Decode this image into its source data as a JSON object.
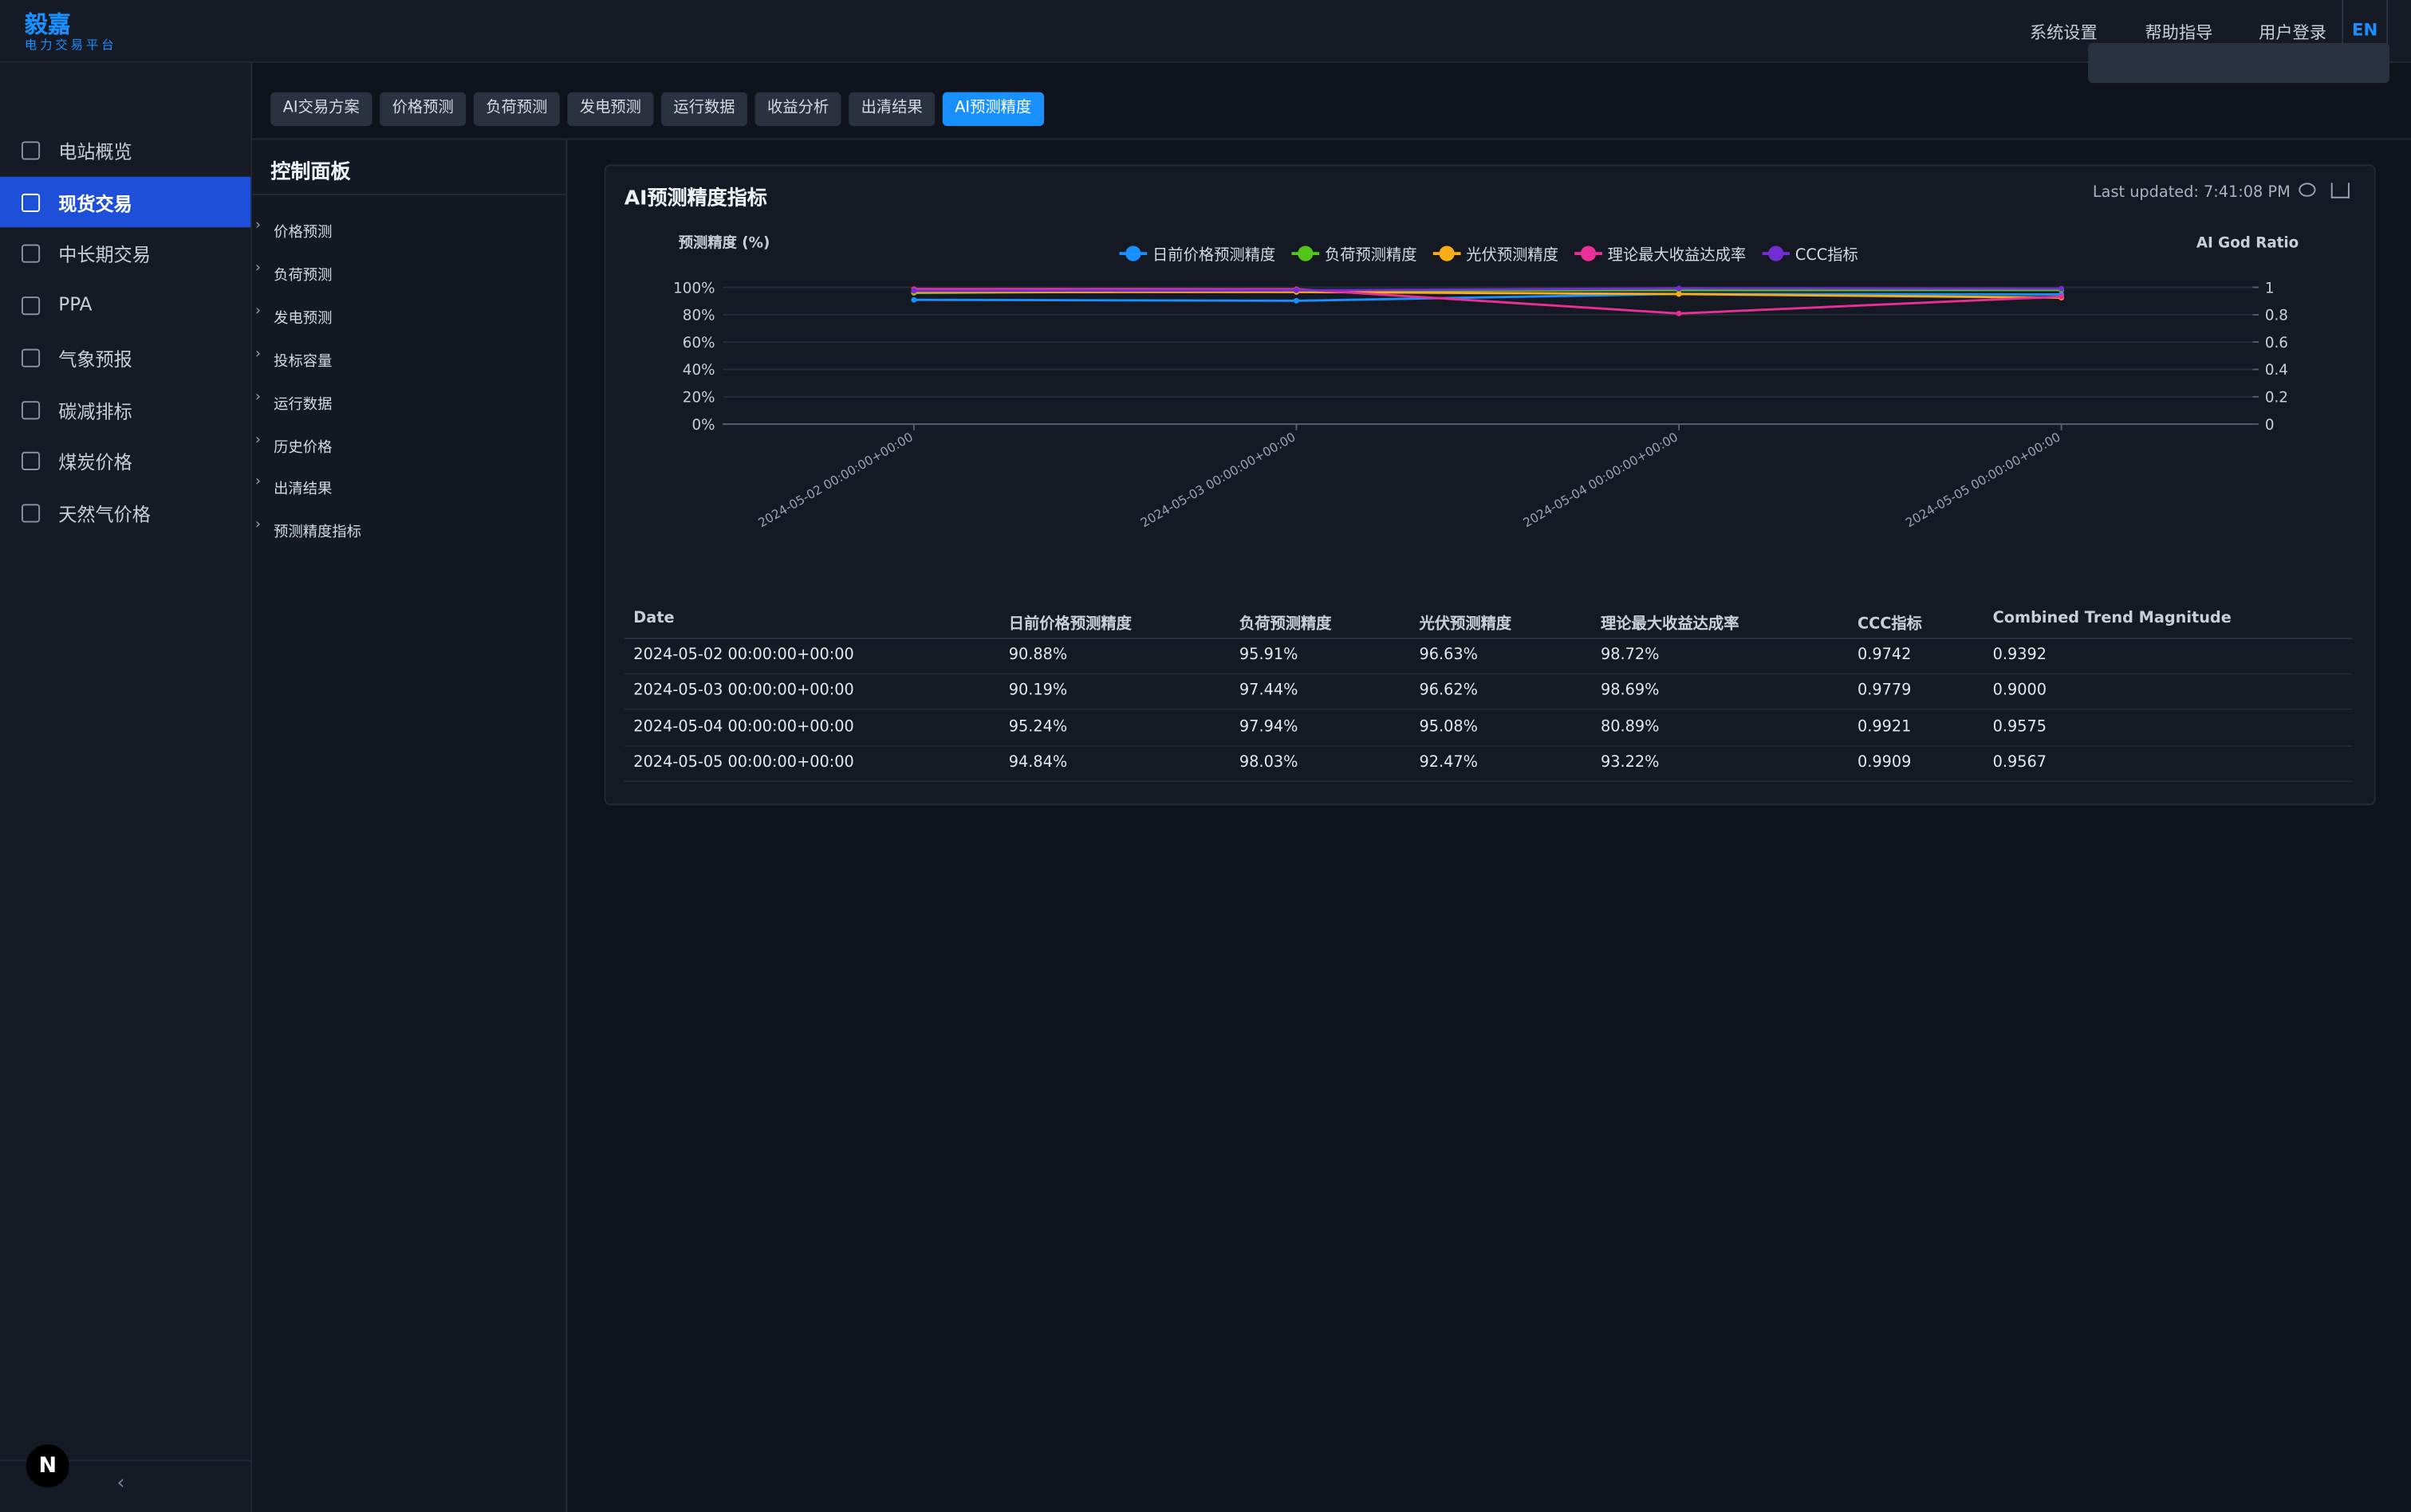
{
  "header": {
    "logo": "毅嘉",
    "logo_sub": "电力交易平台",
    "menu": [
      "系统设置",
      "帮助指导",
      "用户登录"
    ],
    "lang": "EN"
  },
  "sidebar": {
    "items": [
      "电站概览",
      "现货交易",
      "中长期交易",
      "PPA",
      "气象预报",
      "碳减排标",
      "煤炭价格",
      "天然气价格"
    ],
    "active": 1
  },
  "tabs": {
    "items": [
      "AI交易方案",
      "价格预测",
      "负荷预测",
      "发电预测",
      "运行数据",
      "收益分析",
      "出清结果",
      "AI预测精度"
    ],
    "active": 7
  },
  "control_panel": {
    "title": "控制面板",
    "items": [
      "价格预测",
      "负荷预测",
      "发电预测",
      "投标容量",
      "运行数据",
      "历史价格",
      "出清结果",
      "预测精度指标"
    ]
  },
  "card": {
    "title": "AI预测精度指标",
    "last_updated": "Last updated: 7:41:08 PM"
  },
  "chart_data": {
    "type": "line",
    "y_label": "预测精度 (%)",
    "y2_label": "AI God Ratio",
    "categories": [
      "2024-05-02 00:00:00+00:00",
      "2024-05-03 00:00:00+00:00",
      "2024-05-04 00:00:00+00:00",
      "2024-05-05 00:00:00+00:00"
    ],
    "series": [
      {
        "name": "日前价格预测精度",
        "color": "#1890ff",
        "values": [
          90.88,
          90.19,
          95.24,
          94.84
        ]
      },
      {
        "name": "负荷预测精度",
        "color": "#52c41a",
        "values": [
          95.91,
          97.44,
          97.94,
          98.03
        ]
      },
      {
        "name": "光伏预测精度",
        "color": "#faad14",
        "values": [
          96.63,
          96.62,
          95.08,
          92.47
        ]
      },
      {
        "name": "理论最大收益达成率",
        "color": "#eb2f96",
        "values": [
          98.72,
          98.69,
          80.89,
          93.22
        ]
      },
      {
        "name": "CCC指标",
        "color": "#722ed1",
        "values": [
          0.9742,
          0.9779,
          0.9921,
          0.9909
        ],
        "axis": "y2"
      }
    ],
    "ylim": [
      0,
      100
    ],
    "yticks": [
      {
        "value": 0,
        "label": "0%"
      },
      {
        "value": 20,
        "label": "20%"
      },
      {
        "value": 40,
        "label": "40%"
      },
      {
        "value": 60,
        "label": "60%"
      },
      {
        "value": 80,
        "label": "80%"
      },
      {
        "value": 100,
        "label": "100%"
      }
    ],
    "y2lim": [
      0,
      1
    ],
    "y2ticks": [
      0,
      0.2,
      0.4,
      0.6,
      0.8,
      1
    ],
    "grid": true,
    "legend": "top"
  },
  "table": {
    "columns": [
      "Date",
      "日前价格预测精度",
      "负荷预测精度",
      "光伏预测精度",
      "理论最大收益达成率",
      "CCC指标",
      "Combined Trend Magnitude"
    ],
    "rows": [
      [
        "2024-05-02 00:00:00+00:00",
        "90.88%",
        "95.91%",
        "96.63%",
        "98.72%",
        "0.9742",
        "0.9392"
      ],
      [
        "2024-05-03 00:00:00+00:00",
        "90.19%",
        "97.44%",
        "96.62%",
        "98.69%",
        "0.9779",
        "0.9000"
      ],
      [
        "2024-05-04 00:00:00+00:00",
        "95.24%",
        "97.94%",
        "95.08%",
        "80.89%",
        "0.9921",
        "0.9575"
      ],
      [
        "2024-05-05 00:00:00+00:00",
        "94.84%",
        "98.03%",
        "92.47%",
        "93.22%",
        "0.9909",
        "0.9567"
      ]
    ]
  }
}
